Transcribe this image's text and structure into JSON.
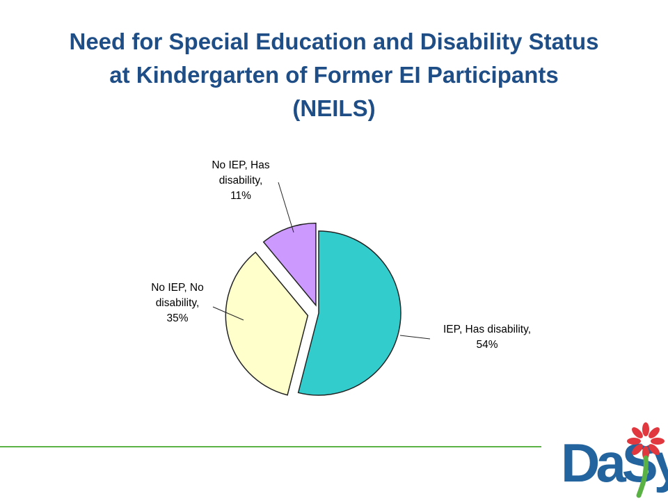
{
  "slide": {
    "title_lines": [
      "Need for Special Education and Disability Status",
      "at Kindergarten of Former EI Participants",
      "(NEILS)"
    ]
  },
  "chart_data": {
    "type": "pie",
    "slices": [
      {
        "label_lines": [
          "IEP, Has disability,",
          "54%"
        ],
        "value": 54,
        "color": "#33cccc"
      },
      {
        "label_lines": [
          "No IEP, No",
          "disability,",
          "35%"
        ],
        "value": 35,
        "color": "#ffffcc"
      },
      {
        "label_lines": [
          "No IEP, Has",
          "disability,",
          "11%"
        ],
        "value": 11,
        "color": "#cc99ff"
      }
    ]
  },
  "logo": {
    "text": "DaSy",
    "icon": "flower-icon",
    "accent_color": "#e0383e",
    "brand_color": "#23649e"
  },
  "colors": {
    "title": "#1f4e86",
    "rule": "#5ab245"
  }
}
